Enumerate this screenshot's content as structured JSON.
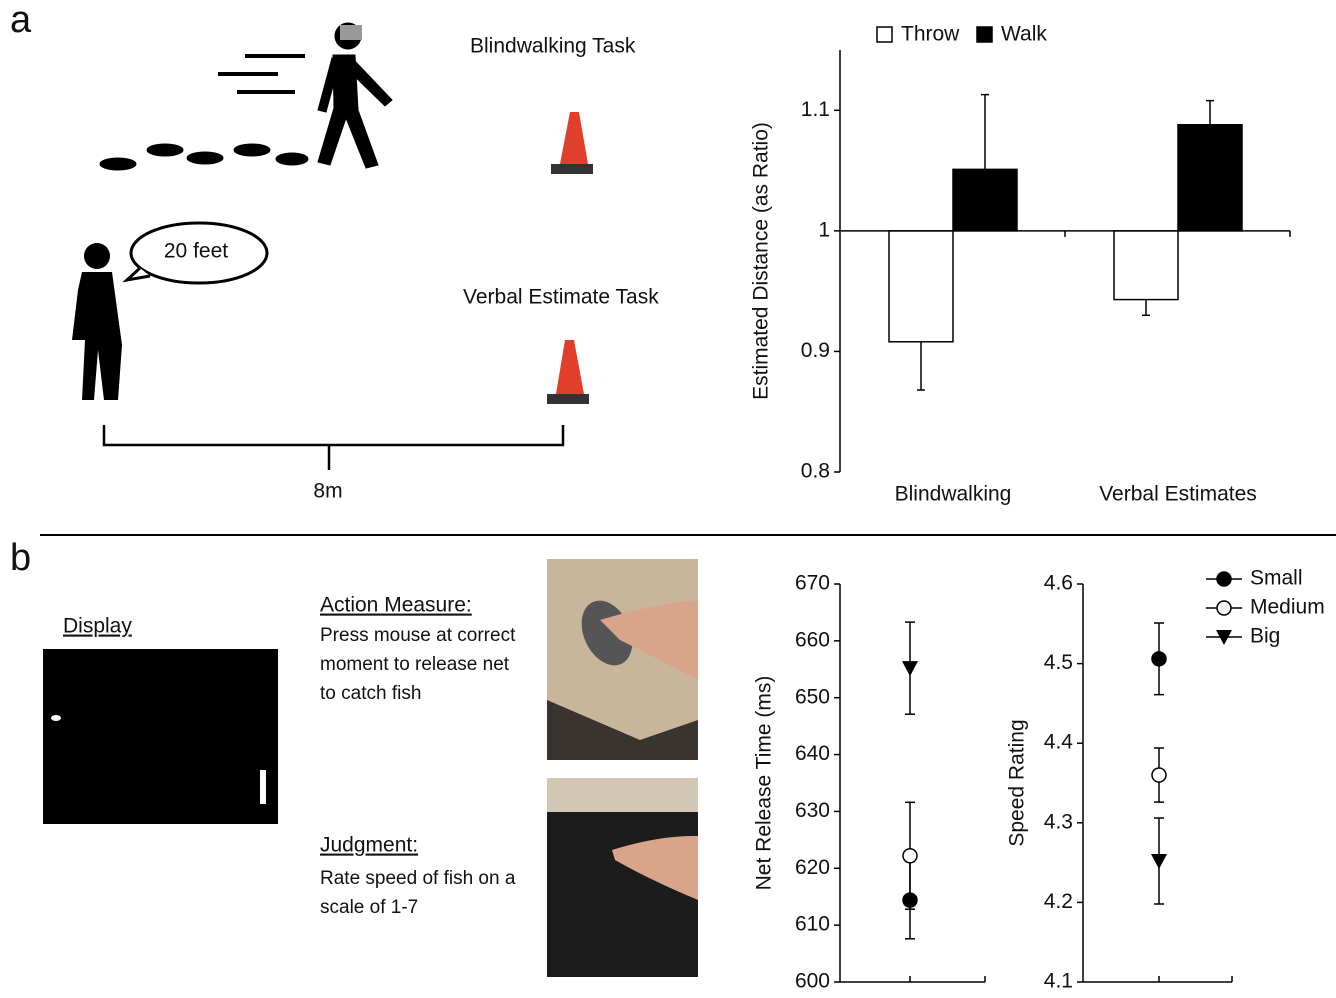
{
  "panel_a": {
    "label": "a",
    "blindwalking_task": "Blindwalking Task",
    "speech": "20 feet",
    "verbal_task": "Verbal Estimate Task",
    "distance": "8m"
  },
  "panel_b": {
    "label": "b",
    "display": "Display",
    "action_title": "Action Measure:",
    "action_lines": [
      "Press mouse at correct",
      "moment to release net",
      "to catch fish"
    ],
    "judgment_title": "Judgment:",
    "judgment_lines": [
      "Rate speed of fish on a",
      "scale of 1-7"
    ]
  },
  "chart_data": [
    {
      "type": "bar",
      "ylabel": "Estimated Distance (as Ratio)",
      "categories": [
        "Blindwalking",
        "Verbal Estimates"
      ],
      "series": [
        {
          "name": "Throw",
          "color": "#ffffff",
          "values": [
            0.908,
            0.943
          ],
          "errors": [
            0.04,
            0.013
          ]
        },
        {
          "name": "Walk",
          "color": "#000000",
          "values": [
            1.051,
            1.088
          ],
          "errors": [
            0.062,
            0.02
          ]
        }
      ],
      "ylim": [
        0.8,
        1.15
      ],
      "yticks": [
        0.8,
        0.9,
        1,
        1.1
      ],
      "x_axis_at": 1,
      "legend": "top"
    },
    {
      "type": "errorpoint",
      "ylabel": "Net Release Time (ms)",
      "series": [
        {
          "marker": "filled-circle",
          "values": [
            614.4
          ],
          "errors": [
            6.8
          ]
        },
        {
          "marker": "open-circle",
          "values": [
            622.2
          ],
          "errors": [
            9.4
          ]
        },
        {
          "marker": "triangle-down",
          "values": [
            655.2
          ],
          "errors": [
            8.1
          ]
        }
      ],
      "ylim": [
        600,
        670
      ],
      "yticks": [
        600,
        610,
        620,
        630,
        640,
        650,
        660,
        670
      ]
    },
    {
      "type": "errorpoint",
      "ylabel": "Speed Rating",
      "series": [
        {
          "name": "Small",
          "marker": "filled-circle",
          "values": [
            4.506
          ],
          "errors": [
            0.045
          ]
        },
        {
          "name": "Medium",
          "marker": "open-circle",
          "values": [
            4.36
          ],
          "errors": [
            0.034
          ]
        },
        {
          "name": "Big",
          "marker": "triangle-down",
          "values": [
            4.252
          ],
          "errors": [
            0.054
          ]
        }
      ],
      "ylim": [
        4.1,
        4.6
      ],
      "yticks": [
        4.1,
        4.2,
        4.3,
        4.4,
        4.5,
        4.6
      ],
      "legend": "top-right"
    }
  ]
}
